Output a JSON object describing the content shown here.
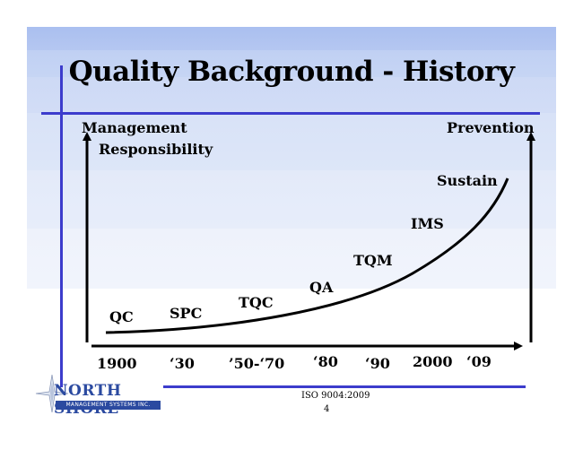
{
  "title": "Quality Background - History",
  "axis": {
    "left_label_line1": "Management",
    "left_label_line2": "Responsibility",
    "right_label": "Prevention"
  },
  "stages": [
    {
      "label": "QC"
    },
    {
      "label": "SPC"
    },
    {
      "label": "TQC"
    },
    {
      "label": "QA"
    },
    {
      "label": "TQM"
    },
    {
      "label": "IMS"
    },
    {
      "label": "Sustain"
    }
  ],
  "timeline": [
    "1900",
    "‘30",
    "’50-‘70",
    "‘80",
    "‘90",
    "2000",
    "‘09"
  ],
  "footer": {
    "standard": "ISO 9004:2009",
    "page_number": "4"
  },
  "logo": {
    "name": "NORTH SHORE",
    "tagline": "MANAGEMENT SYSTEMS INC."
  },
  "colors": {
    "rule": "#3c3ccc",
    "logo": "#2b4aa0",
    "band_top": "#aabff0",
    "band_bottom": "#f1f4fc"
  }
}
